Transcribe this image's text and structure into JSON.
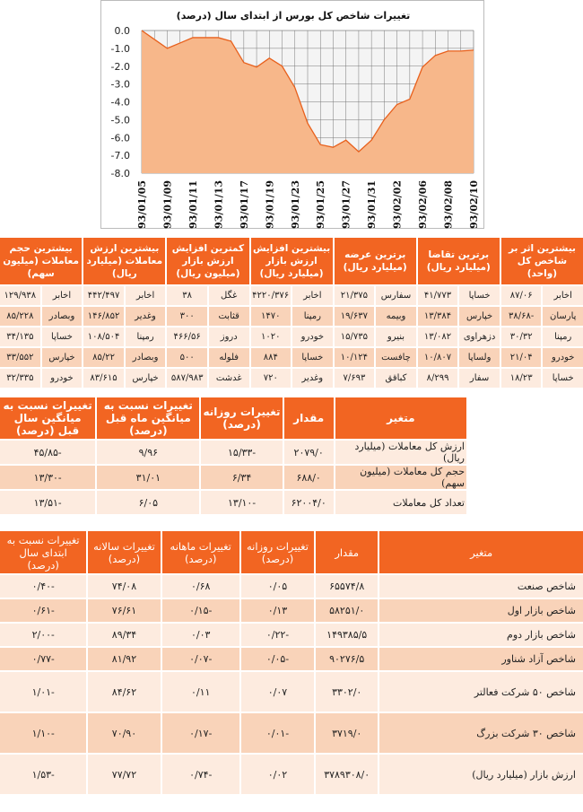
{
  "chart_data": {
    "type": "area",
    "title": "تغییرات شاخص کل بورس از ابتدای سال (درصد)",
    "xlabel": "",
    "ylabel": "",
    "ylim": [
      -8,
      0
    ],
    "yticks": [
      "0.0",
      "-1.0",
      "-2.0",
      "-3.0",
      "-4.0",
      "-5.0",
      "-6.0",
      "-7.0",
      "-8.0"
    ],
    "yticks_values": [
      0,
      -1,
      -2,
      -3,
      -4,
      -5,
      -6,
      -7,
      -8
    ],
    "x_tick_labels": [
      "93/01/05",
      "93/01/09",
      "93/01/11",
      "93/01/13",
      "93/01/17",
      "93/01/19",
      "93/01/23",
      "93/01/25",
      "93/01/27",
      "93/01/31",
      "93/02/02",
      "93/02/06",
      "93/02/08",
      "93/02/10"
    ],
    "values": [
      0.0,
      -0.5,
      -1.0,
      -0.7,
      -0.4,
      -0.4,
      -0.4,
      -0.6,
      -1.8,
      -2.05,
      -1.55,
      -2.0,
      -3.2,
      -5.2,
      -6.4,
      -6.55,
      -6.15,
      -6.8,
      -6.15,
      -5.0,
      -4.15,
      -3.85,
      -2.05,
      -1.4,
      -1.15,
      -1.15,
      -1.1
    ],
    "grid": true,
    "colors": {
      "fill": "#f7b78a",
      "line": "#e8601c"
    }
  },
  "colors": {
    "accent": "#f26522",
    "row_light": "#fdebdf",
    "row_dark": "#f9d3b9"
  },
  "top_table": {
    "headers": [
      "بیشترین اثر بر شاخص کل (واحد)",
      "برترین تقاضا (میلیارد ریال)",
      "برترین عرضه (میلیارد ریال)",
      "بیشترین افزایش ارزش بازار (میلیارد ریال)",
      "کمترین افزایش ارزش بازار (میلیون ریال)",
      "بیشترین ارزش معاملات (میلیارد ریال)",
      "بیشترین حجم معاملات (میلیون سهم)"
    ],
    "rows": [
      [
        "اخابر",
        "۸۷/۰۶",
        "خساپا",
        "۴۱/۷۷۳",
        "سفارس",
        "۲۱/۳۷۵",
        "اخابر",
        "۴۲۲۰/۳۷۶",
        "غگل",
        "۳۸",
        "اخابر",
        "۴۴۲/۴۹۷",
        "اخابر",
        "۱۲۹/۹۳۸"
      ],
      [
        "پارسان",
        "-۳۸/۶۸",
        "خپارس",
        "۱۳/۳۸۴",
        "وبیمه",
        "۱۹/۶۳۷",
        "رمپنا",
        "۱۴۷۰",
        "قثابت",
        "۳۰۰",
        "وغدیر",
        "۱۴۶/۸۵۲",
        "وبصادر",
        "۸۵/۲۲۸"
      ],
      [
        "رمپنا",
        "۳۰/۳۲",
        "دزهراوی",
        "۱۳/۰۸۲",
        "بنیرو",
        "۱۵/۷۳۵",
        "خودرو",
        "۱۰۲۰",
        "دروز",
        "۴۶۶/۵۶",
        "رمپنا",
        "۱۰۸/۵۰۴",
        "خساپا",
        "۳۴/۱۳۵"
      ],
      [
        "خودرو",
        "۲۱/۰۴",
        "ولساپا",
        "۱۰/۸۰۷",
        "چافست",
        "۱۰/۱۲۴",
        "خساپا",
        "۸۸۴",
        "فلوله",
        "۵۰۰",
        "وبصادر",
        "۸۵/۲۲",
        "خپارس",
        "۳۳/۵۵۲"
      ],
      [
        "خساپا",
        "۱۸/۲۳",
        "سفار",
        "۸/۲۹۹",
        "کباقق",
        "۷/۶۹۳",
        "وغدیر",
        "۷۲۰",
        "غدشت",
        "۵۸۷/۹۸۳",
        "خپارس",
        "۸۳/۶۱۵",
        "خودرو",
        "۳۲/۳۳۵"
      ]
    ]
  },
  "mid_table": {
    "headers": [
      "متغیر",
      "مقدار",
      "تغییرات روزانه (درصد)",
      "تغییرات نسبت به میانگین ماه قبل (درصد)",
      "تغییرات نسبت به میانگین سال قبل (درصد)"
    ],
    "rows": [
      [
        "ارزش کل معاملات (میلیارد ریال)",
        "۲۰۷۹/۰",
        "-۱۵/۳۳",
        "۹/۹۶",
        "-۴۵/۸۵"
      ],
      [
        "حجم کل معاملات (میلیون سهم)",
        "۶۸۸/۰",
        "۶/۳۴",
        "۳۱/۰۱",
        "-۱۳/۳۰"
      ],
      [
        "تعداد کل معاملات",
        "۶۲۰۰۴/۰",
        "-۱۳/۱۰",
        "۶/۰۵",
        "-۱۳/۵۱"
      ]
    ]
  },
  "bottom_table": {
    "headers": [
      "متغیر",
      "مقدار",
      "تغییرات روزانه (درصد)",
      "تغییرات ماهانه (درصد)",
      "تغییرات سالانه (درصد)",
      "تغییرات نسبت به ابتدای سال (درصد)"
    ],
    "rows": [
      [
        "شاخص صنعت",
        "۶۵۵۷۴/۸",
        "۰/۰۵",
        "۰/۶۸",
        "۷۴/۰۸",
        "-۰/۴۰"
      ],
      [
        "شاخص بازار اول",
        "۵۸۲۵۱/۰",
        "۰/۱۳",
        "-۰/۱۵",
        "۷۶/۶۱",
        "-۰/۶۱"
      ],
      [
        "شاخص بازار دوم",
        "۱۴۹۳۸۵/۵",
        "-۰/۲۲",
        "۰/۰۳",
        "۸۹/۳۴",
        "-۲/۰۰"
      ],
      [
        "شاخص آزاد شناور",
        "۹۰۲۷۶/۵",
        "-۰/۰۵",
        "-۰/۰۷",
        "۸۱/۹۲",
        "-۰/۷۷"
      ],
      [
        "شاخص ۵۰ شرکت فعالتر",
        "۳۳۰۲/۰",
        "۰/۰۷",
        "۰/۱۱",
        "۸۴/۶۲",
        "-۱/۰۱"
      ],
      [
        "شاخص ۳۰ شرکت بزرگ",
        "۳۷۱۹/۰",
        "-۰/۰۱",
        "-۰/۱۷",
        "۷۰/۹۰",
        "-۱/۱۰"
      ],
      [
        "ارزش بازار (میلیارد ریال)",
        "۳۷۸۹۳۰۸/۰",
        "۰/۰۲",
        "-۰/۷۴",
        "۷۷/۷۲",
        "-۱/۵۳"
      ]
    ]
  }
}
